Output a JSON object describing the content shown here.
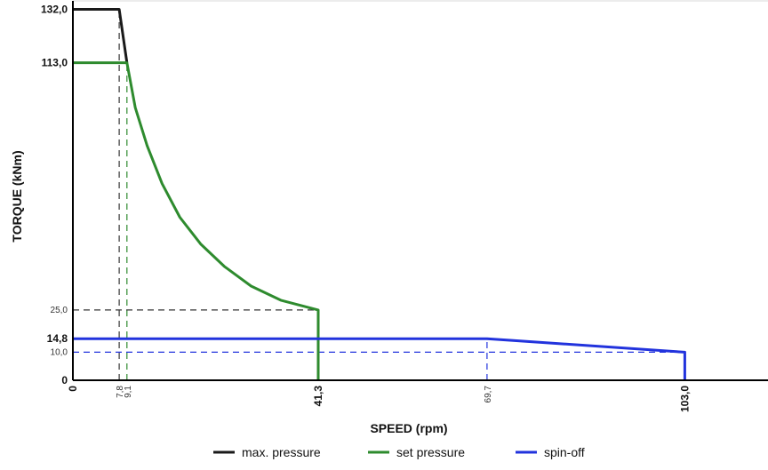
{
  "chart_data": {
    "type": "line",
    "xlabel": "SPEED (rpm)",
    "ylabel": "TORQUE (kNm)",
    "xlim": [
      0,
      117
    ],
    "ylim": [
      0,
      135
    ],
    "grid": false,
    "legend_position": "bottom",
    "x_ticks": [
      {
        "value": 0,
        "label": "0",
        "style": "major"
      },
      {
        "value": 7.8,
        "label": "7,8",
        "style": "minor"
      },
      {
        "value": 9.1,
        "label": "9,1",
        "style": "minor"
      },
      {
        "value": 41.3,
        "label": "41,3",
        "style": "major"
      },
      {
        "value": 69.7,
        "label": "69,7",
        "style": "minor"
      },
      {
        "value": 103.0,
        "label": "103,0",
        "style": "major"
      }
    ],
    "y_ticks": [
      {
        "value": 0,
        "label": "0",
        "style": "major"
      },
      {
        "value": 10.0,
        "label": "10,0",
        "style": "minor"
      },
      {
        "value": 14.8,
        "label": "14,8",
        "style": "major"
      },
      {
        "value": 25.0,
        "label": "25,0",
        "style": "minor"
      },
      {
        "value": 113.0,
        "label": "113,0",
        "style": "major"
      },
      {
        "value": 132.0,
        "label": "132,0",
        "style": "major"
      }
    ],
    "series": [
      {
        "name": "max. pressure",
        "color": "#1a1a1a",
        "points": [
          [
            0,
            132.0
          ],
          [
            7.8,
            132.0
          ],
          [
            9.1,
            113.0
          ]
        ]
      },
      {
        "name": "set pressure",
        "color": "#2e8b2e",
        "points": [
          [
            0,
            113.0
          ],
          [
            9.1,
            113.0
          ],
          [
            10.5,
            97.0
          ],
          [
            12.5,
            83.5
          ],
          [
            15.0,
            70.0
          ],
          [
            18.0,
            58.0
          ],
          [
            21.5,
            48.5
          ],
          [
            25.5,
            40.5
          ],
          [
            30.0,
            33.5
          ],
          [
            35.0,
            28.5
          ],
          [
            41.3,
            25.0
          ],
          [
            41.3,
            0
          ]
        ]
      },
      {
        "name": "spin-off",
        "color": "#2233dd",
        "points": [
          [
            0,
            14.8
          ],
          [
            69.7,
            14.8
          ],
          [
            103.0,
            10.0
          ],
          [
            103.0,
            0
          ]
        ]
      }
    ],
    "guides": [
      {
        "color": "#333333",
        "points": [
          [
            7.8,
            0
          ],
          [
            7.8,
            132.0
          ]
        ]
      },
      {
        "color": "#2e8b2e",
        "points": [
          [
            9.1,
            0
          ],
          [
            9.1,
            113.0
          ]
        ]
      },
      {
        "color": "#333333",
        "points": [
          [
            0,
            25.0
          ],
          [
            41.3,
            25.0
          ]
        ]
      },
      {
        "color": "#2233dd",
        "points": [
          [
            69.7,
            0
          ],
          [
            69.7,
            14.8
          ]
        ]
      },
      {
        "color": "#2233dd",
        "points": [
          [
            0,
            10.0
          ],
          [
            103.0,
            10.0
          ]
        ]
      }
    ]
  }
}
